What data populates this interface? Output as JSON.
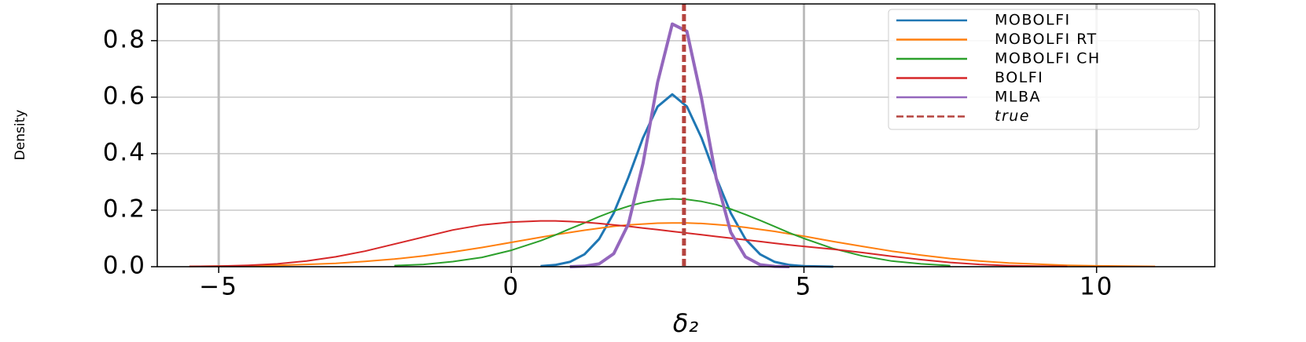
{
  "chart_data": {
    "type": "line",
    "xlabel": "δ₂",
    "ylabel": "Density",
    "x": [
      -5.5,
      -5,
      -4.5,
      -4,
      -3.5,
      -3,
      -2.5,
      -2,
      -1.5,
      -1,
      -0.5,
      0,
      0.5,
      0.75,
      1,
      1.25,
      1.5,
      1.75,
      2,
      2.25,
      2.5,
      2.75,
      3,
      3.25,
      3.5,
      3.75,
      4,
      4.25,
      4.5,
      4.75,
      5,
      5.5,
      6,
      6.5,
      7,
      7.5,
      8,
      8.5,
      9,
      9.5,
      10,
      10.5,
      11,
      11.5
    ],
    "series": [
      {
        "name": "MOBOLFI",
        "color": "#1f77b4",
        "width": 3,
        "values": [
          null,
          null,
          null,
          null,
          null,
          null,
          null,
          null,
          null,
          null,
          null,
          null,
          0.002,
          0.006,
          0.017,
          0.044,
          0.098,
          0.19,
          0.316,
          0.456,
          0.567,
          0.61,
          0.567,
          0.456,
          0.316,
          0.19,
          0.098,
          0.044,
          0.017,
          0.006,
          0.002,
          0,
          null,
          null,
          null,
          null,
          null,
          null,
          null,
          null,
          null,
          null,
          null,
          null
        ]
      },
      {
        "name": "MOBOLFI RT",
        "color": "#ff7f0e",
        "width": 2,
        "values": [
          0.001,
          0.002,
          0.003,
          0.005,
          0.008,
          0.012,
          0.019,
          0.027,
          0.038,
          0.052,
          0.068,
          0.086,
          0.104,
          0.113,
          0.121,
          0.129,
          0.136,
          0.143,
          0.148,
          0.151,
          0.154,
          0.155,
          0.155,
          0.153,
          0.149,
          0.145,
          0.139,
          0.132,
          0.125,
          0.116,
          0.108,
          0.089,
          0.072,
          0.055,
          0.041,
          0.029,
          0.02,
          0.013,
          0.009,
          0.005,
          0.003,
          0.002,
          0.001,
          null
        ]
      },
      {
        "name": "MOBOLFI CH",
        "color": "#2ca02c",
        "width": 2,
        "values": [
          null,
          null,
          null,
          null,
          null,
          null,
          null,
          0.004,
          0.008,
          0.018,
          0.033,
          0.058,
          0.092,
          0.112,
          0.134,
          0.155,
          0.177,
          0.197,
          0.214,
          0.227,
          0.236,
          0.24,
          0.238,
          0.231,
          0.22,
          0.204,
          0.185,
          0.164,
          0.142,
          0.12,
          0.1,
          0.064,
          0.038,
          0.02,
          0.01,
          0.004,
          null,
          null,
          null,
          null,
          null,
          null,
          null,
          null
        ]
      },
      {
        "name": "BOLFI",
        "color": "#d62728",
        "width": 2,
        "values": [
          0.001,
          0.002,
          0.005,
          0.01,
          0.02,
          0.035,
          0.055,
          0.08,
          0.105,
          0.13,
          0.148,
          0.158,
          0.162,
          0.162,
          0.16,
          0.157,
          0.153,
          0.148,
          0.143,
          0.137,
          0.131,
          0.125,
          0.119,
          0.113,
          0.107,
          0.101,
          0.095,
          0.089,
          0.083,
          0.077,
          0.072,
          0.062,
          0.05,
          0.037,
          0.025,
          0.015,
          0.008,
          0.004,
          0.002,
          0.001,
          null,
          null,
          null,
          null
        ]
      },
      {
        "name": "MLBA",
        "color": "#9467bd",
        "width": 4,
        "values": [
          null,
          null,
          null,
          null,
          null,
          null,
          null,
          null,
          null,
          null,
          null,
          null,
          null,
          null,
          0,
          0.002,
          0.01,
          0.046,
          0.151,
          0.366,
          0.653,
          0.859,
          0.833,
          0.596,
          0.314,
          0.122,
          0.035,
          0.007,
          0.001,
          0,
          null,
          null,
          null,
          null,
          null,
          null,
          null,
          null,
          null,
          null,
          null,
          null,
          null,
          null
        ]
      }
    ],
    "true_line": {
      "name": "true",
      "x": 2.95,
      "color": "#b5443f"
    },
    "xlim": [
      -6.05,
      12.02
    ],
    "ylim": [
      0,
      0.93
    ],
    "xticks": [
      {
        "value": -5,
        "label": "−5"
      },
      0,
      5,
      10
    ],
    "yticks": [
      {
        "value": 0,
        "label": "0.0"
      },
      0.2,
      0.4,
      0.6,
      0.8
    ],
    "grid": true,
    "legend": "upper right"
  }
}
